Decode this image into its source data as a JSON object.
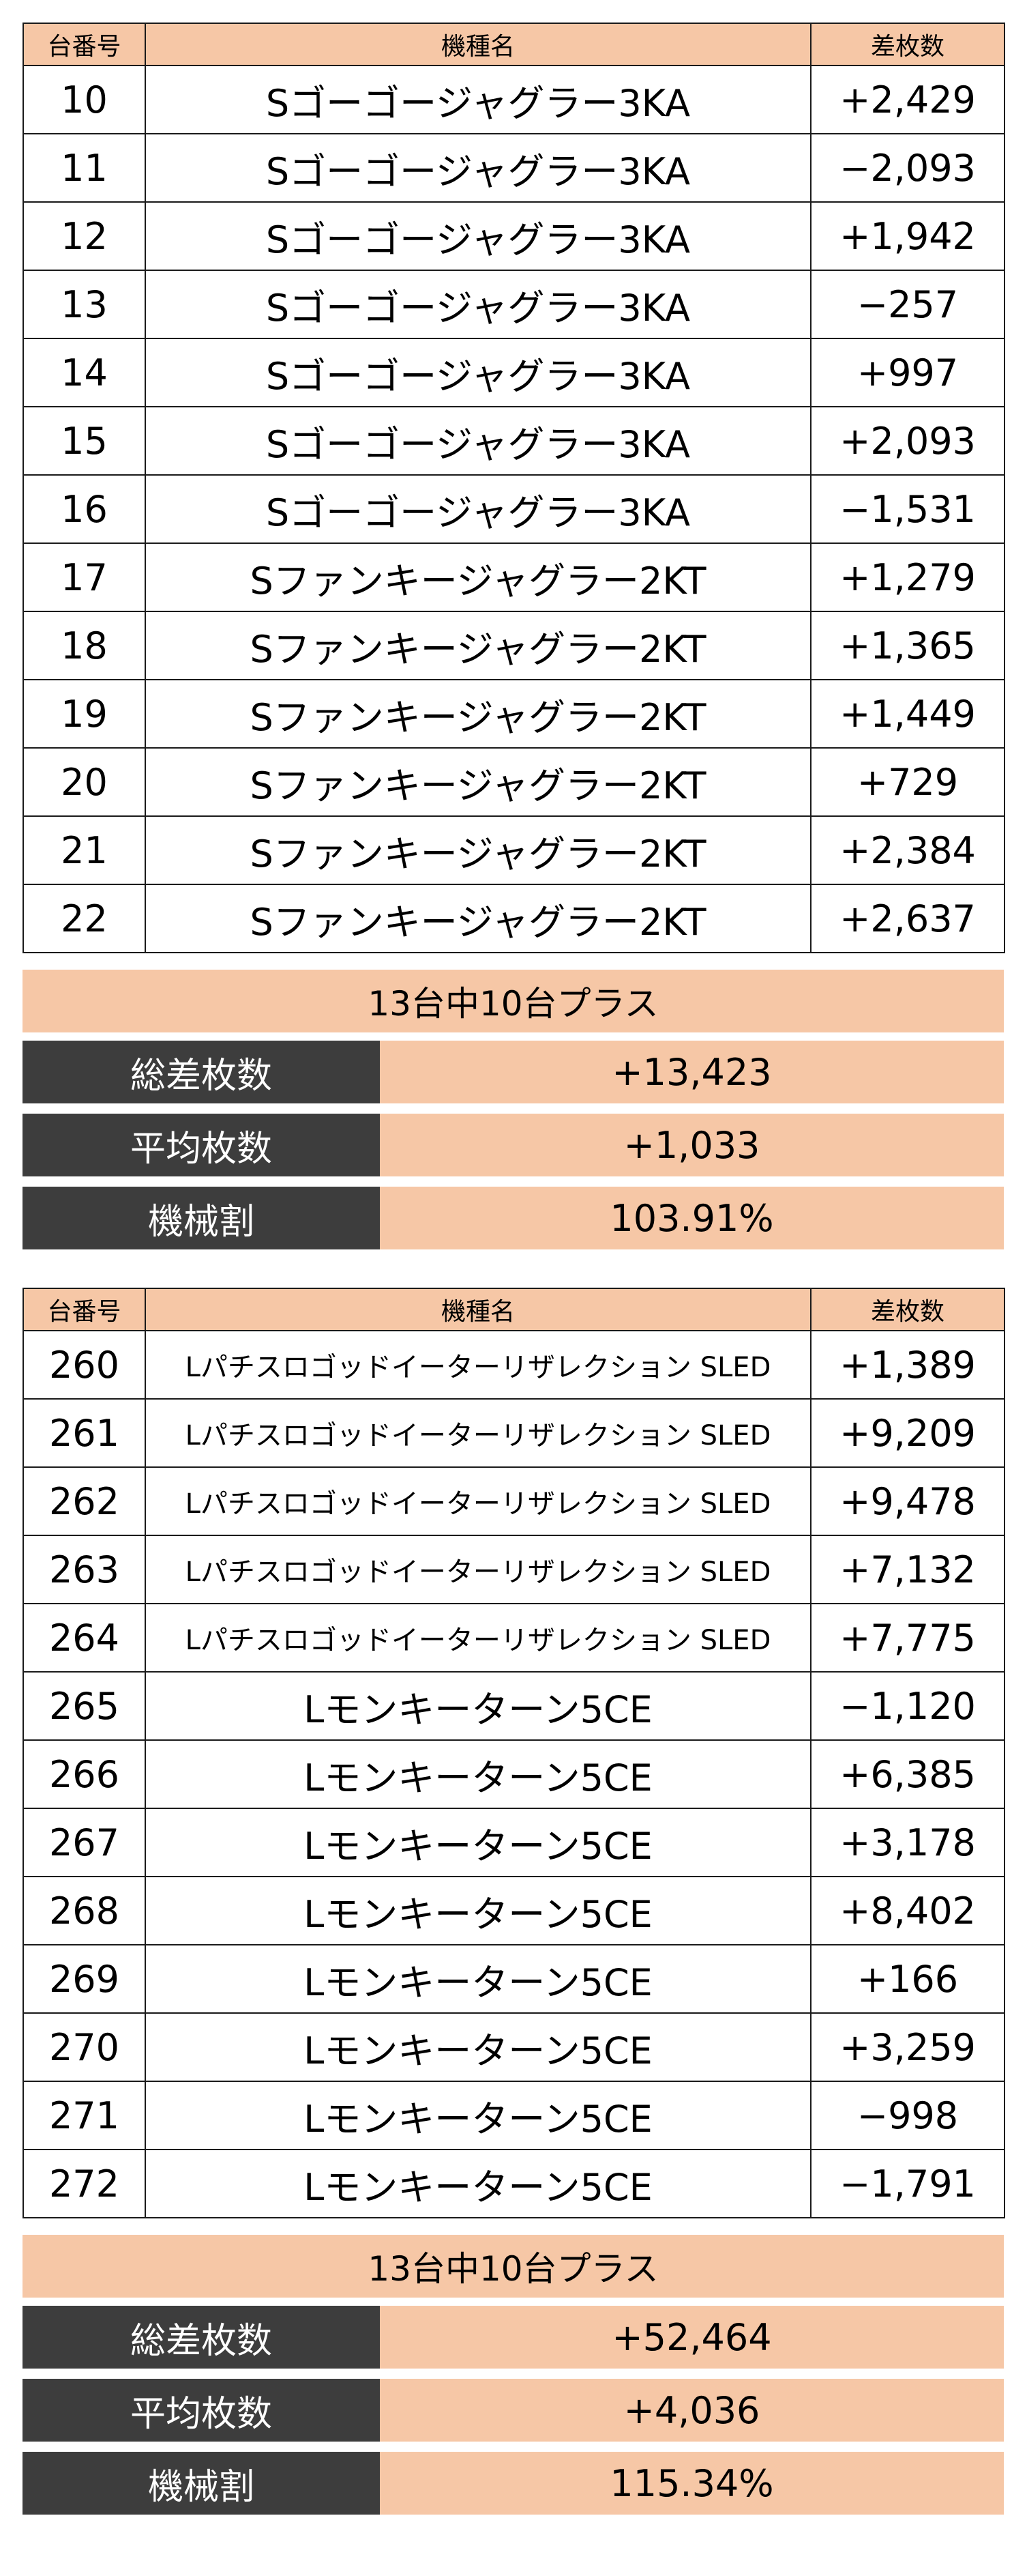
{
  "columns": {
    "no": "台番号",
    "name": "機種名",
    "diff": "差枚数"
  },
  "tables": [
    {
      "rows": [
        {
          "no": "10",
          "name": "Sゴーゴージャグラー3KA",
          "diff": "+2,429"
        },
        {
          "no": "11",
          "name": "Sゴーゴージャグラー3KA",
          "diff": "−2,093"
        },
        {
          "no": "12",
          "name": "Sゴーゴージャグラー3KA",
          "diff": "+1,942"
        },
        {
          "no": "13",
          "name": "Sゴーゴージャグラー3KA",
          "diff": "−257"
        },
        {
          "no": "14",
          "name": "Sゴーゴージャグラー3KA",
          "diff": "+997"
        },
        {
          "no": "15",
          "name": "Sゴーゴージャグラー3KA",
          "diff": "+2,093"
        },
        {
          "no": "16",
          "name": "Sゴーゴージャグラー3KA",
          "diff": "−1,531"
        },
        {
          "no": "17",
          "name": "Sファンキージャグラー2KT",
          "diff": "+1,279"
        },
        {
          "no": "18",
          "name": "Sファンキージャグラー2KT",
          "diff": "+1,365"
        },
        {
          "no": "19",
          "name": "Sファンキージャグラー2KT",
          "diff": "+1,449"
        },
        {
          "no": "20",
          "name": "Sファンキージャグラー2KT",
          "diff": "+729"
        },
        {
          "no": "21",
          "name": "Sファンキージャグラー2KT",
          "diff": "+2,384"
        },
        {
          "no": "22",
          "name": "Sファンキージャグラー2KT",
          "diff": "+2,637"
        }
      ],
      "summary": {
        "headline": "13台中10台プラス",
        "total_label": "総差枚数",
        "total_value": "+13,423",
        "avg_label": "平均枚数",
        "avg_value": "+1,033",
        "rate_label": "機械割",
        "rate_value": "103.91%"
      }
    },
    {
      "rows": [
        {
          "no": "260",
          "name": "Lパチスロゴッドイーターリザレクション SLED",
          "diff": "+1,389"
        },
        {
          "no": "261",
          "name": "Lパチスロゴッドイーターリザレクション SLED",
          "diff": "+9,209"
        },
        {
          "no": "262",
          "name": "Lパチスロゴッドイーターリザレクション SLED",
          "diff": "+9,478"
        },
        {
          "no": "263",
          "name": "Lパチスロゴッドイーターリザレクション SLED",
          "diff": "+7,132"
        },
        {
          "no": "264",
          "name": "Lパチスロゴッドイーターリザレクション SLED",
          "diff": "+7,775"
        },
        {
          "no": "265",
          "name": "Lモンキーターン5CE",
          "diff": "−1,120"
        },
        {
          "no": "266",
          "name": "Lモンキーターン5CE",
          "diff": "+6,385"
        },
        {
          "no": "267",
          "name": "Lモンキーターン5CE",
          "diff": "+3,178"
        },
        {
          "no": "268",
          "name": "Lモンキーターン5CE",
          "diff": "+8,402"
        },
        {
          "no": "269",
          "name": "Lモンキーターン5CE",
          "diff": "+166"
        },
        {
          "no": "270",
          "name": "Lモンキーターン5CE",
          "diff": "+3,259"
        },
        {
          "no": "271",
          "name": "Lモンキーターン5CE",
          "diff": "−998"
        },
        {
          "no": "272",
          "name": "Lモンキーターン5CE",
          "diff": "−1,791"
        }
      ],
      "summary": {
        "headline": "13台中10台プラス",
        "total_label": "総差枚数",
        "total_value": "+52,464",
        "avg_label": "平均枚数",
        "avg_value": "+4,036",
        "rate_label": "機械割",
        "rate_value": "115.34%"
      }
    }
  ],
  "colors": {
    "header_bg": "#f6c7a6",
    "label_bg": "#3d3d3d",
    "border": "#1a1a1a"
  }
}
